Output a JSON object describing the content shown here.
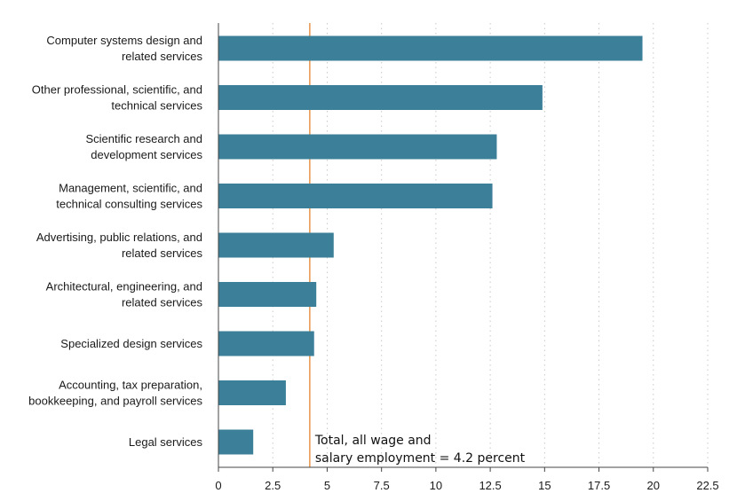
{
  "chart_data": {
    "type": "bar",
    "orientation": "horizontal",
    "title": "",
    "xlabel": "",
    "ylabel": "",
    "xlim": [
      0,
      22.5
    ],
    "x_ticks": [
      0,
      2.5,
      5,
      7.5,
      10,
      12.5,
      15,
      17.5,
      20,
      22.5
    ],
    "x_tick_labels": [
      "0",
      "2.5",
      "5",
      "7.5",
      "10",
      "12.5",
      "15",
      "17.5",
      "20",
      "22.5"
    ],
    "grid": "vertical dotted",
    "bar_color": "#3b7f99",
    "categories": [
      [
        "Computer systems design and",
        "related services"
      ],
      [
        "Other professional, scientific, and",
        "technical services"
      ],
      [
        "Scientific research and",
        "development services"
      ],
      [
        "Management, scientific, and",
        "technical consulting services"
      ],
      [
        "Advertising, public relations, and",
        "related services"
      ],
      [
        "Architectural, engineering, and",
        "related services"
      ],
      [
        "Specialized design services"
      ],
      [
        "Accounting, tax preparation,",
        "bookkeeping, and payroll services"
      ],
      [
        "Legal services"
      ]
    ],
    "values": [
      19.5,
      14.9,
      12.8,
      12.6,
      5.3,
      4.5,
      4.4,
      3.1,
      1.6
    ],
    "reference_line": {
      "value": 4.2,
      "color": "#e8954a",
      "label_lines": [
        "Total, all wage and",
        "salary employment = 4.2 percent"
      ]
    }
  }
}
